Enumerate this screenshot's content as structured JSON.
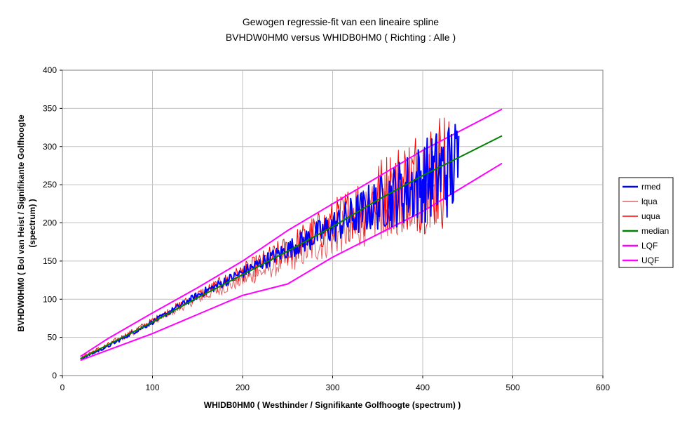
{
  "chart_data": {
    "type": "line",
    "title": "Gewogen regressie-fit van een lineaire spline",
    "subtitle": "BVHDW0HM0 versus WHIDB0HM0 ( Richting : Alle )",
    "xlabel": "WHIDB0HM0 ( Westhinder / Signifikante Golfhoogte (spectrum) )",
    "ylabel_line1": "BVHDW0HM0 ( Bol van Heist / Signifikante Golfhoogte",
    "ylabel_line2": "(spectrum) )",
    "xlim": [
      0,
      600
    ],
    "ylim": [
      0,
      400
    ],
    "x_ticks": [
      "0",
      "100",
      "200",
      "300",
      "400",
      "500",
      "600"
    ],
    "y_ticks": [
      "0",
      "50",
      "100",
      "150",
      "200",
      "250",
      "300",
      "350",
      "400"
    ],
    "grid": true,
    "legend_position": "right",
    "series": [
      {
        "name": "rmed",
        "color": "#0000ff",
        "width": 2,
        "style": "noisy",
        "x": [
          20,
          50,
          100,
          150,
          200,
          250,
          300,
          350,
          400,
          440
        ],
        "y": [
          22,
          38,
          70,
          105,
          135,
          165,
          195,
          225,
          255,
          275
        ],
        "noise": [
          1,
          2,
          3,
          5,
          8,
          12,
          22,
          35,
          55,
          70
        ]
      },
      {
        "name": "lqua",
        "color": "#dd6666",
        "width": 1,
        "style": "noisy",
        "x": [
          20,
          50,
          100,
          150,
          200,
          250,
          300,
          350,
          400,
          420
        ],
        "y": [
          22,
          38,
          70,
          100,
          125,
          150,
          180,
          215,
          250,
          265
        ],
        "noise": [
          2,
          3,
          4,
          6,
          10,
          15,
          25,
          40,
          60,
          70
        ]
      },
      {
        "name": "uqua",
        "color": "#ff0000",
        "width": 1,
        "style": "noisy",
        "x": [
          20,
          50,
          100,
          150,
          200,
          250,
          300,
          350,
          400,
          430
        ],
        "y": [
          24,
          40,
          72,
          105,
          135,
          165,
          200,
          235,
          260,
          275
        ],
        "noise": [
          2,
          3,
          4,
          7,
          12,
          20,
          30,
          50,
          75,
          85
        ]
      },
      {
        "name": "median",
        "color": "#008000",
        "width": 2,
        "style": "line",
        "x": [
          20,
          50,
          100,
          150,
          200,
          250,
          300,
          350,
          400,
          488
        ],
        "y": [
          22,
          40,
          70,
          102,
          132,
          163,
          195,
          230,
          262,
          314
        ]
      },
      {
        "name": "LQF",
        "color": "#ff00ff",
        "width": 2,
        "style": "line",
        "x": [
          20,
          100,
          150,
          200,
          250,
          300,
          350,
          400,
          488
        ],
        "y": [
          20,
          55,
          80,
          105,
          120,
          155,
          185,
          215,
          278
        ]
      },
      {
        "name": "UQF",
        "color": "#ff00ff",
        "width": 2,
        "style": "line",
        "x": [
          20,
          50,
          100,
          150,
          200,
          250,
          300,
          350,
          400,
          488
        ],
        "y": [
          25,
          48,
          82,
          115,
          150,
          190,
          225,
          260,
          295,
          349
        ]
      }
    ]
  }
}
